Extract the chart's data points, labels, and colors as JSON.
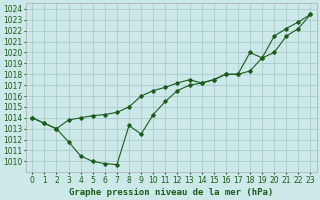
{
  "title": "Graphe pression niveau de la mer (hPa)",
  "bg_color": "#cce8e8",
  "grid_color": "#aacccc",
  "line_color": "#1a5c1a",
  "x_hours": [
    0,
    1,
    2,
    3,
    4,
    5,
    6,
    7,
    8,
    9,
    10,
    11,
    12,
    13,
    14,
    15,
    16,
    17,
    18,
    19,
    20,
    21,
    22,
    23
  ],
  "line1_values": [
    1014.0,
    1013.5,
    1013.0,
    1013.8,
    1014.0,
    1014.2,
    1014.3,
    1014.5,
    1015.0,
    1016.0,
    1016.5,
    1016.8,
    1017.2,
    1017.5,
    1017.2,
    1017.5,
    1018.0,
    1018.0,
    1020.0,
    1019.5,
    1021.5,
    1022.2,
    1022.8,
    1023.5
  ],
  "line2_values": [
    1014.0,
    1013.5,
    1013.0,
    1011.8,
    1010.5,
    1010.0,
    1009.8,
    1009.7,
    1013.3,
    1012.5,
    1014.3,
    1015.5,
    1016.5,
    1017.0,
    1017.2,
    1017.5,
    1018.0,
    1018.0,
    1018.3,
    1019.5,
    1020.0,
    1021.5,
    1022.2,
    1023.5
  ],
  "ylim": [
    1009.0,
    1024.5
  ],
  "yticks": [
    1010,
    1011,
    1012,
    1013,
    1014,
    1015,
    1016,
    1017,
    1018,
    1019,
    1020,
    1021,
    1022,
    1023,
    1024
  ],
  "xticks": [
    0,
    1,
    2,
    3,
    4,
    5,
    6,
    7,
    8,
    9,
    10,
    11,
    12,
    13,
    14,
    15,
    16,
    17,
    18,
    19,
    20,
    21,
    22,
    23
  ],
  "title_fontsize": 6.5,
  "tick_fontsize": 5.5,
  "title_color": "#1a5c1a"
}
